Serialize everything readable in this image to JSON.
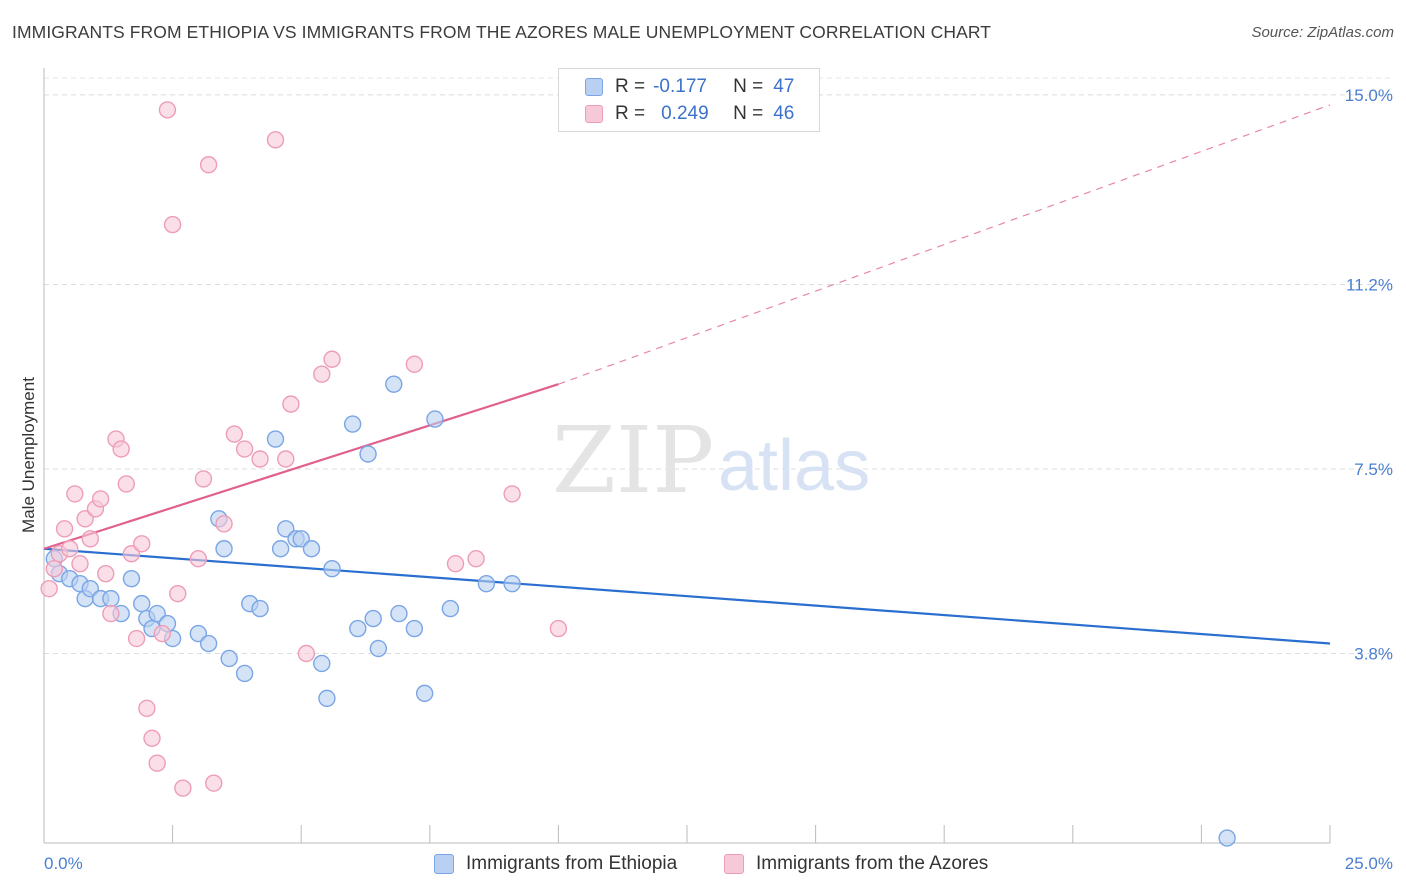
{
  "header": {
    "title": "IMMIGRANTS FROM ETHIOPIA VS IMMIGRANTS FROM THE AZORES MALE UNEMPLOYMENT CORRELATION CHART",
    "source": "Source: ZipAtlas.com"
  },
  "watermark": {
    "part1": "ZIP",
    "part2": "atlas"
  },
  "legend": {
    "rows": [
      {
        "r_label": "R =",
        "r_value": "-0.177",
        "n_label": "N =",
        "n_value": "47"
      },
      {
        "r_label": "R =",
        "r_value": "0.249",
        "n_label": "N =",
        "n_value": "46"
      }
    ]
  },
  "bottom_legend": {
    "series1": "Immigrants from Ethiopia",
    "series2": "Immigrants from the Azores"
  },
  "chart_data": {
    "type": "scatter",
    "title": "IMMIGRANTS FROM ETHIOPIA VS IMMIGRANTS FROM THE AZORES MALE UNEMPLOYMENT CORRELATION CHART",
    "xlabel": "",
    "ylabel": "Male Unemployment",
    "xlim": [
      0,
      25
    ],
    "ylim": [
      0,
      15.5
    ],
    "x_tick_labels": [
      {
        "value": 0,
        "label": "0.0%"
      },
      {
        "value": 25,
        "label": "25.0%"
      }
    ],
    "y_tick_labels": [
      {
        "value": 3.8,
        "label": "3.8%"
      },
      {
        "value": 7.5,
        "label": "7.5%"
      },
      {
        "value": 11.2,
        "label": "11.2%"
      },
      {
        "value": 15.0,
        "label": "15.0%"
      }
    ],
    "y_gridlines": [
      3.8,
      7.5,
      11.2,
      15.0
    ],
    "x_minor_ticks": [
      2.5,
      5,
      7.5,
      10,
      12.5,
      15,
      17.5,
      20,
      22.5,
      25
    ],
    "series": [
      {
        "name": "Immigrants from Ethiopia",
        "color": "#7aa6e6",
        "fill": "#b9d0f2",
        "R": -0.177,
        "N": 47,
        "trend": {
          "x": [
            0,
            25
          ],
          "y": [
            5.9,
            4.0
          ],
          "color": "#2a6fd0",
          "dashed_beyond": null
        },
        "points": [
          [
            0.2,
            5.7
          ],
          [
            0.3,
            5.4
          ],
          [
            0.5,
            5.3
          ],
          [
            0.7,
            5.2
          ],
          [
            0.8,
            4.9
          ],
          [
            0.9,
            5.1
          ],
          [
            1.1,
            4.9
          ],
          [
            1.3,
            4.9
          ],
          [
            1.5,
            4.6
          ],
          [
            1.7,
            5.3
          ],
          [
            1.9,
            4.8
          ],
          [
            2.0,
            4.5
          ],
          [
            2.1,
            4.3
          ],
          [
            2.2,
            4.6
          ],
          [
            2.4,
            4.4
          ],
          [
            2.5,
            4.1
          ],
          [
            3.0,
            4.2
          ],
          [
            3.2,
            4.0
          ],
          [
            3.4,
            6.5
          ],
          [
            3.5,
            5.9
          ],
          [
            3.6,
            3.7
          ],
          [
            3.9,
            3.4
          ],
          [
            4.0,
            4.8
          ],
          [
            4.2,
            4.7
          ],
          [
            4.5,
            8.1
          ],
          [
            4.6,
            5.9
          ],
          [
            4.7,
            6.3
          ],
          [
            4.9,
            6.1
          ],
          [
            5.0,
            6.1
          ],
          [
            5.2,
            5.9
          ],
          [
            5.4,
            3.6
          ],
          [
            5.5,
            2.9
          ],
          [
            5.6,
            5.5
          ],
          [
            6.0,
            8.4
          ],
          [
            6.1,
            4.3
          ],
          [
            6.3,
            7.8
          ],
          [
            6.4,
            4.5
          ],
          [
            6.5,
            3.9
          ],
          [
            6.8,
            9.2
          ],
          [
            6.9,
            4.6
          ],
          [
            7.2,
            4.3
          ],
          [
            7.4,
            3.0
          ],
          [
            7.6,
            8.5
          ],
          [
            7.9,
            4.7
          ],
          [
            8.6,
            5.2
          ],
          [
            9.1,
            5.2
          ],
          [
            23.0,
            0.1
          ]
        ]
      },
      {
        "name": "Immigrants from the Azores",
        "color": "#ee9db8",
        "fill": "#f6c9d8",
        "R": 0.249,
        "N": 46,
        "trend": {
          "x": [
            0,
            10
          ],
          "y": [
            5.9,
            9.2
          ],
          "color": "#e0608e",
          "dashed_to": [
            25,
            14.8
          ]
        },
        "points": [
          [
            0.1,
            5.1
          ],
          [
            0.2,
            5.5
          ],
          [
            0.3,
            5.8
          ],
          [
            0.4,
            6.3
          ],
          [
            0.5,
            5.9
          ],
          [
            0.6,
            7.0
          ],
          [
            0.7,
            5.6
          ],
          [
            0.8,
            6.5
          ],
          [
            0.9,
            6.1
          ],
          [
            1.0,
            6.7
          ],
          [
            1.1,
            6.9
          ],
          [
            1.2,
            5.4
          ],
          [
            1.3,
            4.6
          ],
          [
            1.4,
            8.1
          ],
          [
            1.5,
            7.9
          ],
          [
            1.6,
            7.2
          ],
          [
            1.7,
            5.8
          ],
          [
            1.8,
            4.1
          ],
          [
            1.9,
            6.0
          ],
          [
            2.0,
            2.7
          ],
          [
            2.1,
            2.1
          ],
          [
            2.2,
            1.6
          ],
          [
            2.3,
            4.2
          ],
          [
            2.4,
            14.7
          ],
          [
            2.5,
            12.4
          ],
          [
            2.6,
            5.0
          ],
          [
            2.7,
            1.1
          ],
          [
            3.0,
            5.7
          ],
          [
            3.1,
            7.3
          ],
          [
            3.2,
            13.6
          ],
          [
            3.3,
            1.2
          ],
          [
            3.5,
            6.4
          ],
          [
            3.7,
            8.2
          ],
          [
            3.9,
            7.9
          ],
          [
            4.2,
            7.7
          ],
          [
            4.5,
            14.1
          ],
          [
            4.7,
            7.7
          ],
          [
            4.8,
            8.8
          ],
          [
            5.1,
            3.8
          ],
          [
            5.4,
            9.4
          ],
          [
            5.6,
            9.7
          ],
          [
            7.2,
            9.6
          ],
          [
            8.0,
            5.6
          ],
          [
            8.4,
            5.7
          ],
          [
            9.1,
            7.0
          ],
          [
            10.0,
            4.3
          ]
        ]
      }
    ]
  }
}
